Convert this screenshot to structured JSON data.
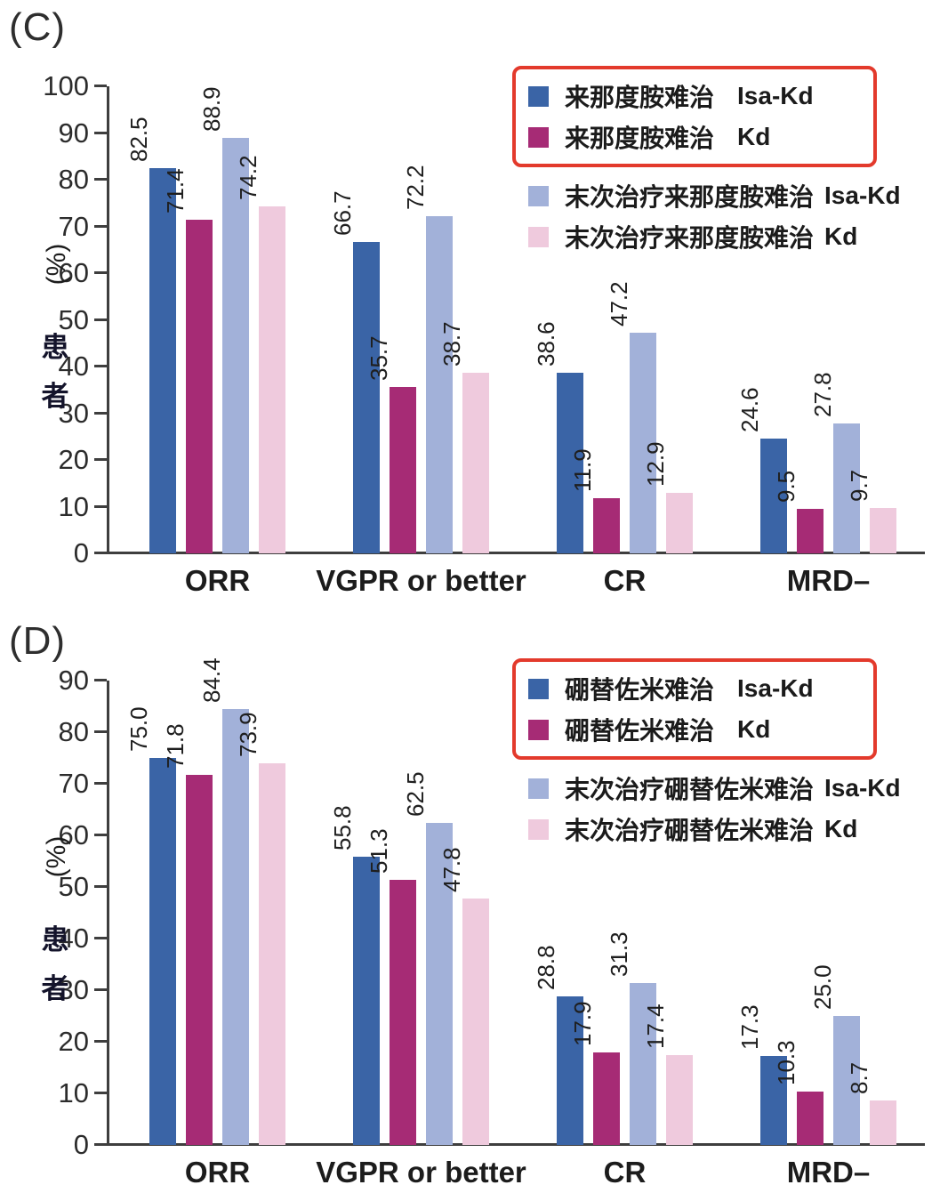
{
  "colors": {
    "bar_isa_kd": "#3A64A6",
    "bar_kd": "#A62B75",
    "bar_lastline_isa_kd": "#A2B1D9",
    "bar_lastline_kd": "#EFCADD",
    "legend_highlight_border": "#E33A2C",
    "axis": "#3E3E3E",
    "text": "#1F1F1F"
  },
  "chart_data": [
    {
      "type": "bar",
      "panel_label": "(C)",
      "ylabel_unit": "(%)",
      "ylabel_chars": [
        "患",
        "者"
      ],
      "ylim": [
        0,
        100
      ],
      "ytick_step": 10,
      "yticks": [
        0,
        10,
        20,
        30,
        40,
        50,
        60,
        70,
        80,
        90,
        100
      ],
      "categories": [
        "ORR",
        "VGPR or better",
        "CR",
        "MRD–"
      ],
      "grid": false,
      "legend_position": "top-right",
      "value_label_rotation": 90,
      "series": [
        {
          "name": "来那度胺难治",
          "arm": "Isa-Kd",
          "color": "#3A64A6",
          "highlighted": true,
          "values": [
            82.5,
            66.7,
            38.6,
            24.6
          ]
        },
        {
          "name": "来那度胺难治",
          "arm": "Kd",
          "color": "#A62B75",
          "highlighted": true,
          "values": [
            71.4,
            35.7,
            11.9,
            9.5
          ]
        },
        {
          "name": "末次治疗来那度胺难治",
          "arm": "Isa-Kd",
          "color": "#A2B1D9",
          "highlighted": false,
          "values": [
            88.9,
            72.2,
            47.2,
            27.8
          ]
        },
        {
          "name": "末次治疗来那度胺难治",
          "arm": "Kd",
          "color": "#EFCADD",
          "highlighted": false,
          "values": [
            74.2,
            38.7,
            12.9,
            9.7
          ]
        }
      ]
    },
    {
      "type": "bar",
      "panel_label": "(D)",
      "ylabel_unit": "(%)",
      "ylabel_chars": [
        "患",
        "者"
      ],
      "ylim": [
        0,
        90
      ],
      "ytick_step": 10,
      "yticks": [
        0,
        10,
        20,
        30,
        40,
        50,
        60,
        70,
        80,
        90
      ],
      "categories": [
        "ORR",
        "VGPR or better",
        "CR",
        "MRD–"
      ],
      "grid": false,
      "legend_position": "top-right",
      "value_label_rotation": 90,
      "series": [
        {
          "name": "硼替佐米难治",
          "arm": "Isa-Kd",
          "color": "#3A64A6",
          "highlighted": true,
          "values": [
            75.0,
            55.8,
            28.8,
            17.3
          ]
        },
        {
          "name": "硼替佐米难治",
          "arm": "Kd",
          "color": "#A62B75",
          "highlighted": true,
          "values": [
            71.8,
            51.3,
            17.9,
            10.3
          ]
        },
        {
          "name": "末次治疗硼替佐米难治",
          "arm": "Isa-Kd",
          "color": "#A2B1D9",
          "highlighted": false,
          "values": [
            84.4,
            62.5,
            31.3,
            25.0
          ]
        },
        {
          "name": "末次治疗硼替佐米难治",
          "arm": "Kd",
          "color": "#EFCADD",
          "highlighted": false,
          "values": [
            73.9,
            47.8,
            17.4,
            8.7
          ]
        }
      ]
    }
  ]
}
